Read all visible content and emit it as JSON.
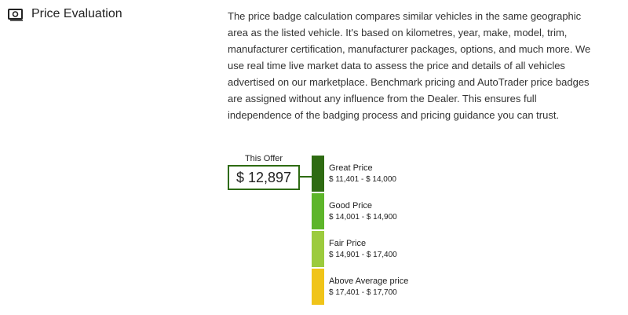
{
  "header": {
    "title": "Price Evaluation"
  },
  "description": "The price badge calculation compares similar vehicles in the same geographic area as the listed vehicle. It's based on kilometres, year, make, model, trim, manufacturer certification, manufacturer packages, options, and much more. We use real time live market data to assess the price and details of all vehicles advertised on our marketplace. Benchmark pricing and AutoTrader price badges are assigned without any influence from the Dealer. This ensures full independence of the badging process and pricing guidance you can trust.",
  "offer": {
    "label": "This Offer",
    "price": "$ 12,897"
  },
  "bands": [
    {
      "label": "Great Price",
      "range": "$ 11,401 - $ 14,000"
    },
    {
      "label": "Good Price",
      "range": "$ 14,001 - $ 14,900"
    },
    {
      "label": "Fair Price",
      "range": "$ 14,901 - $ 17,400"
    },
    {
      "label": "Above Average price",
      "range": "$ 17,401 - $ 17,700"
    }
  ]
}
